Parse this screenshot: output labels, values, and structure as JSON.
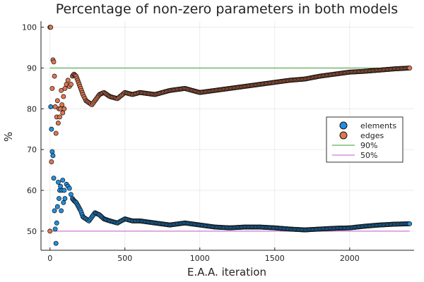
{
  "chart_data": {
    "type": "scatter",
    "title": "Percentage of non-zero parameters in both models",
    "xlabel": "E.A.A. iteration",
    "ylabel": "%",
    "xlim": [
      -60,
      2430
    ],
    "ylim": [
      45.3,
      101.5
    ],
    "xticks": [
      0,
      500,
      1000,
      1500,
      2000
    ],
    "yticks": [
      50,
      60,
      70,
      80,
      90,
      100
    ],
    "grid": true,
    "legend_position": "right",
    "series": [
      {
        "name": "elements",
        "kind": "scatter",
        "color": "#1f8fe0",
        "x": [
          0,
          5,
          10,
          15,
          20,
          25,
          30,
          35,
          40,
          45,
          50,
          55,
          60,
          65,
          70,
          75,
          80,
          85,
          90,
          95,
          100,
          110,
          120,
          130,
          140,
          150,
          160,
          175,
          190,
          205,
          220,
          240,
          260,
          280,
          300,
          330,
          360,
          400,
          450,
          500,
          550,
          600,
          700,
          800,
          900,
          1000,
          1100,
          1200,
          1300,
          1400,
          1500,
          1600,
          1700,
          1800,
          1900,
          2000,
          2100,
          2200,
          2300,
          2400
        ],
        "y": [
          100,
          80.5,
          75,
          69.5,
          68.5,
          63,
          55,
          50.5,
          47,
          52,
          56,
          62,
          58,
          60,
          61,
          55,
          60,
          62.5,
          57,
          60,
          58,
          61.5,
          61,
          60.5,
          59,
          58,
          57.5,
          57,
          56,
          55,
          53.5,
          53,
          52.5,
          53.5,
          54.5,
          54,
          53,
          52.5,
          52,
          53,
          52.5,
          52.5,
          52,
          51.5,
          52,
          51.5,
          51,
          50.8,
          51,
          51,
          50.8,
          50.5,
          50.3,
          50.5,
          50.7,
          50.8,
          51.2,
          51.5,
          51.7,
          51.8
        ]
      },
      {
        "name": "edges",
        "kind": "scatter",
        "color": "#e0774f",
        "x": [
          0,
          5,
          10,
          15,
          20,
          25,
          30,
          35,
          40,
          45,
          50,
          55,
          60,
          65,
          70,
          75,
          80,
          85,
          90,
          95,
          100,
          110,
          120,
          130,
          140,
          150,
          160,
          175,
          190,
          205,
          220,
          240,
          260,
          280,
          300,
          330,
          360,
          400,
          450,
          500,
          550,
          600,
          700,
          800,
          900,
          1000,
          1100,
          1200,
          1300,
          1400,
          1500,
          1600,
          1700,
          1800,
          1900,
          2000,
          2100,
          2200,
          2300,
          2400
        ],
        "y": [
          50,
          100,
          67,
          85,
          92,
          91.5,
          88,
          80.5,
          74,
          78,
          82,
          76.5,
          80,
          78,
          80,
          84.5,
          81,
          79,
          83,
          80,
          85,
          86,
          87,
          85.5,
          86,
          88,
          88.5,
          88,
          86.5,
          85,
          83.5,
          82,
          81.5,
          81,
          82,
          83.5,
          84,
          83,
          82.5,
          84,
          83.5,
          84,
          83.5,
          84.5,
          85,
          84,
          84.5,
          85,
          85.5,
          86,
          86.5,
          87,
          87.3,
          88,
          88.5,
          89,
          89.2,
          89.5,
          89.8,
          90
        ]
      },
      {
        "name": "90%",
        "kind": "line",
        "color": "#3a9a3a",
        "x": [
          0,
          2400
        ],
        "y": [
          90,
          90
        ]
      },
      {
        "name": "50%",
        "kind": "line",
        "color": "#c25ac8",
        "x": [
          0,
          2400
        ],
        "y": [
          50,
          50
        ]
      }
    ]
  }
}
